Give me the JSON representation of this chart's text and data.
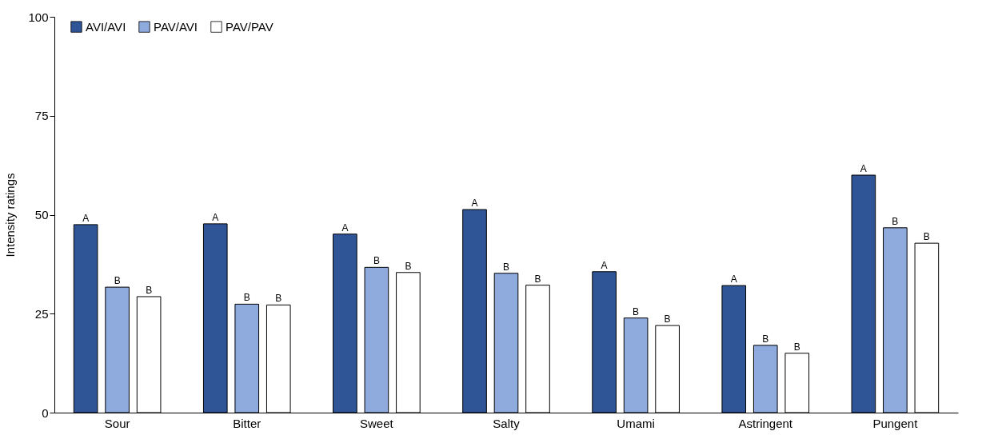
{
  "chart_data": {
    "type": "bar",
    "ylabel": "Intensity ratings",
    "categories": [
      "Sour",
      "Bitter",
      "Sweet",
      "Salty",
      "Umami",
      "Astringent",
      "Pungent"
    ],
    "series": [
      {
        "name": "AVI/AVI",
        "color": "#2f5597",
        "values": [
          47.5,
          47.7,
          45.1,
          51.3,
          35.6,
          32.1,
          60.0
        ],
        "value_labels": [
          "A",
          "A",
          "A",
          "A",
          "A",
          "A",
          "A"
        ]
      },
      {
        "name": "PAV/AVI",
        "color": "#8faadc",
        "values": [
          31.7,
          27.4,
          36.7,
          35.2,
          23.9,
          17.0,
          46.7
        ],
        "value_labels": [
          "B",
          "B",
          "B",
          "B",
          "B",
          "B",
          "B"
        ]
      },
      {
        "name": "PAV/PAV",
        "color": "#ffffff",
        "values": [
          29.3,
          27.2,
          35.4,
          32.2,
          22.0,
          15.0,
          42.8
        ],
        "value_labels": [
          "B",
          "B",
          "B",
          "B",
          "B",
          "B",
          "B"
        ]
      }
    ],
    "ylim": [
      0,
      100
    ],
    "yticks": [
      0,
      25,
      50,
      75,
      100
    ],
    "grid": false,
    "legend": "top left"
  }
}
